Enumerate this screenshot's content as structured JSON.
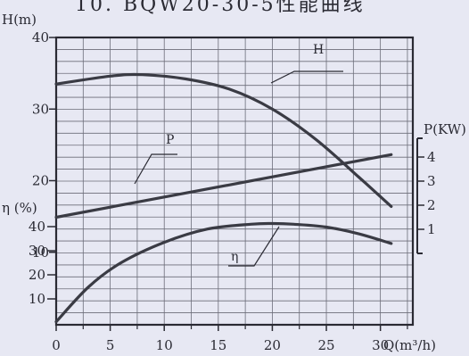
{
  "chart_data": {
    "type": "line",
    "title": "10. BQW20-30-5性能曲线",
    "x": {
      "label": "Q(m³/h)",
      "ticks": [
        0,
        5,
        10,
        15,
        20,
        25,
        30
      ],
      "range": [
        0,
        33
      ]
    },
    "axes": {
      "head": {
        "label": "H(m)",
        "ticks": [
          10,
          20,
          30,
          40
        ],
        "tick_labels": [
          "10",
          "20",
          "30",
          "40"
        ],
        "range": [
          0,
          40
        ]
      },
      "efficiency": {
        "label": "η (%)",
        "ticks": [
          10,
          20,
          30,
          40
        ],
        "tick_labels": [
          "10",
          "20",
          "30",
          "40"
        ],
        "range": [
          0,
          50
        ]
      },
      "power": {
        "label": "P(KW)",
        "ticks": [
          1,
          2,
          3,
          4
        ],
        "tick_labels": [
          "1",
          "2",
          "3",
          "4"
        ],
        "range": [
          0,
          4.7
        ]
      }
    },
    "grid": true,
    "series": [
      {
        "name": "H",
        "axis": "head",
        "x": [
          0,
          5,
          8,
          12,
          16,
          20,
          24,
          28,
          31
        ],
        "y": [
          33.5,
          34.6,
          34.8,
          34.2,
          32.8,
          30.0,
          25.8,
          20.5,
          16.4
        ]
      },
      {
        "name": "P",
        "axis": "power",
        "x": [
          0,
          31
        ],
        "y": [
          1.5,
          4.1
        ]
      },
      {
        "name": "η",
        "axis": "efficiency",
        "x": [
          0,
          3,
          6,
          10,
          14,
          18,
          20,
          22,
          25,
          28,
          31
        ],
        "y": [
          0.5,
          15,
          25,
          33.5,
          39,
          41,
          41.3,
          41,
          39.8,
          37,
          33
        ]
      }
    ]
  }
}
